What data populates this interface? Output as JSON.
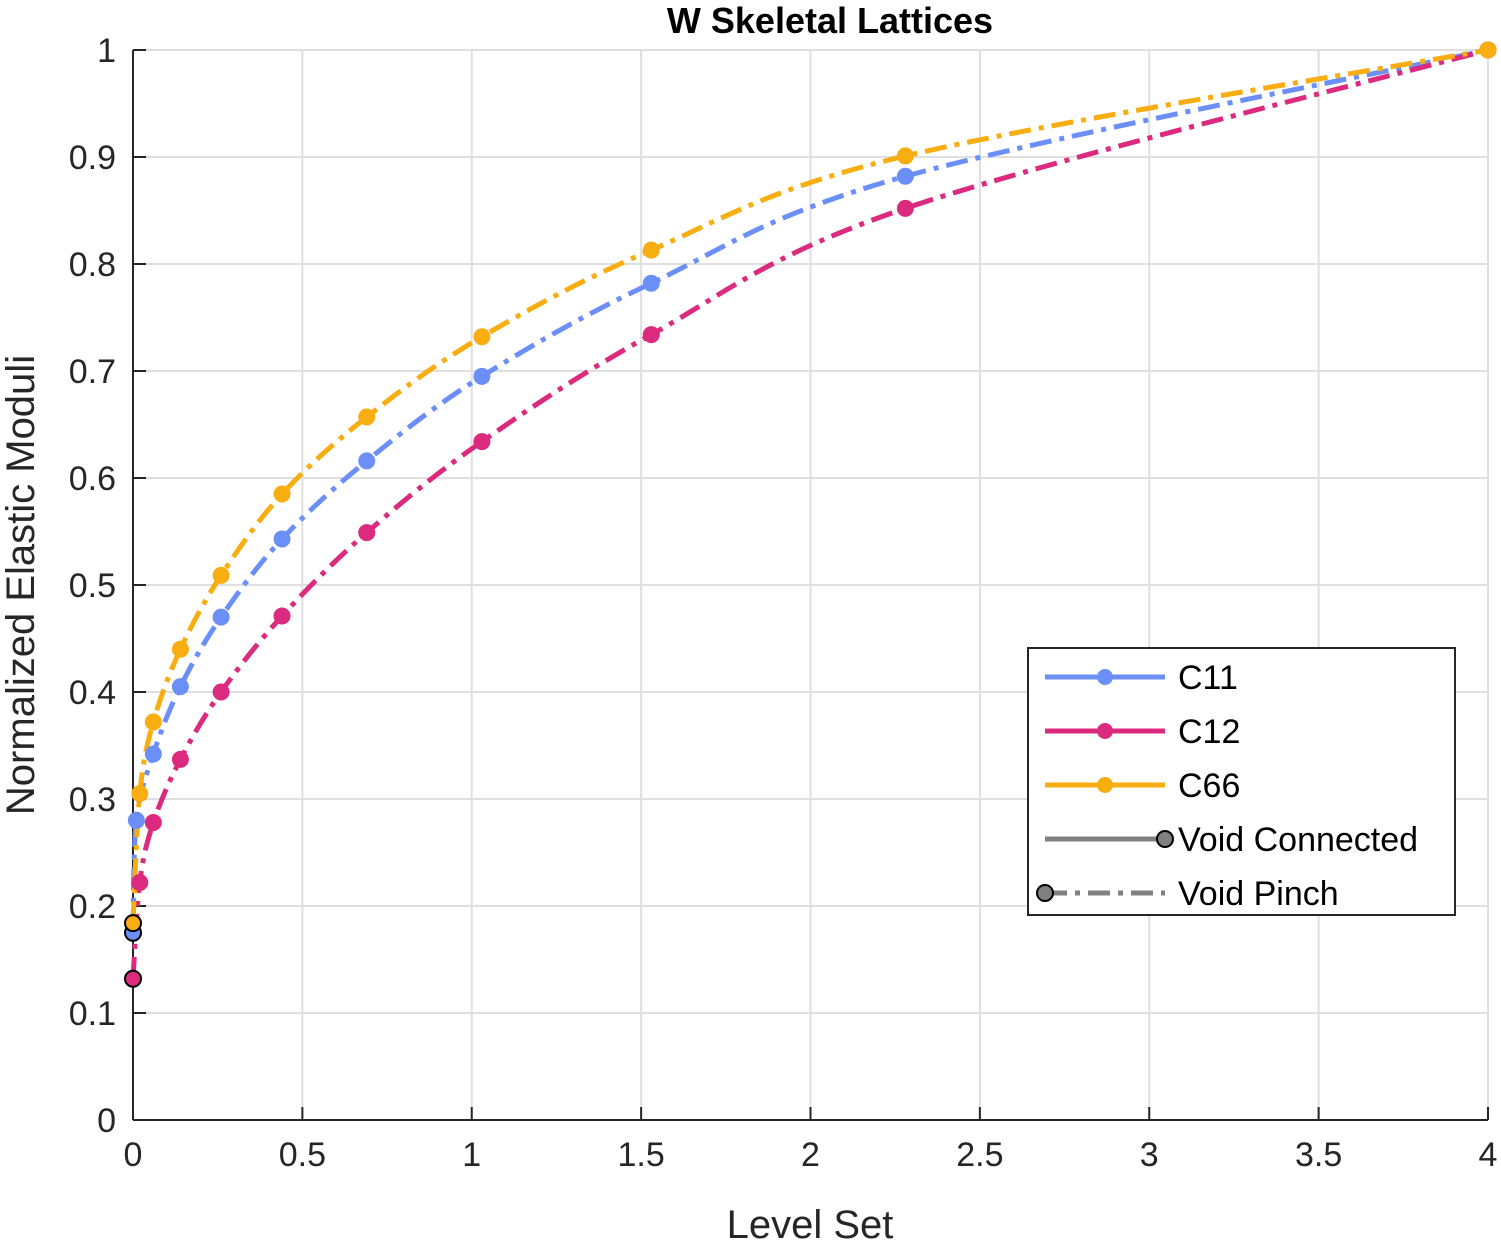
{
  "chart_data": {
    "type": "line",
    "title": "W Skeletal Lattices",
    "xlabel": "Level Set",
    "ylabel": "Normalized Elastic Moduli",
    "xlim": [
      0,
      4
    ],
    "ylim": [
      0,
      1
    ],
    "xticks": [
      "0",
      "0.5",
      "1",
      "1.5",
      "2",
      "2.5",
      "3",
      "3.5",
      "4"
    ],
    "yticks": [
      "0",
      "0.1",
      "0.2",
      "0.3",
      "0.4",
      "0.5",
      "0.6",
      "0.7",
      "0.8",
      "0.9",
      "1"
    ],
    "grid": true,
    "legend_position": "center-right",
    "series": [
      {
        "name": "C11",
        "color": "#6b8ff7",
        "line_style": "dash-dot",
        "x": [
          0,
          0.01,
          0.06,
          0.14,
          0.26,
          0.44,
          0.69,
          1.03,
          1.53,
          2.28,
          4.0
        ],
        "y": [
          0.175,
          0.28,
          0.342,
          0.405,
          0.47,
          0.543,
          0.616,
          0.695,
          0.782,
          0.882,
          1.0
        ]
      },
      {
        "name": "C12",
        "color": "#dc2a7e",
        "line_style": "dash-dot",
        "x": [
          0,
          0.02,
          0.06,
          0.14,
          0.26,
          0.44,
          0.69,
          1.03,
          1.53,
          2.28,
          4.0
        ],
        "y": [
          0.132,
          0.222,
          0.278,
          0.337,
          0.4,
          0.471,
          0.549,
          0.634,
          0.734,
          0.852,
          1.0
        ]
      },
      {
        "name": "C66",
        "color": "#f8ad10",
        "line_style": "dash-dot",
        "x": [
          0,
          0.02,
          0.06,
          0.14,
          0.26,
          0.44,
          0.69,
          1.03,
          1.53,
          2.28,
          4.0
        ],
        "y": [
          0.184,
          0.305,
          0.372,
          0.44,
          0.509,
          0.585,
          0.657,
          0.732,
          0.813,
          0.901,
          1.0
        ]
      }
    ],
    "legend_entries": [
      {
        "label": "C11",
        "color": "#6b8ff7",
        "style": "solid-marker"
      },
      {
        "label": "C12",
        "color": "#dc2a7e",
        "style": "solid-marker"
      },
      {
        "label": "C66",
        "color": "#f8ad10",
        "style": "solid-marker"
      },
      {
        "label": "Void Connected",
        "color": "#808080",
        "style": "solid-end-marker"
      },
      {
        "label": "Void Pinch",
        "color": "#808080",
        "style": "dashdot-start-marker"
      }
    ]
  }
}
